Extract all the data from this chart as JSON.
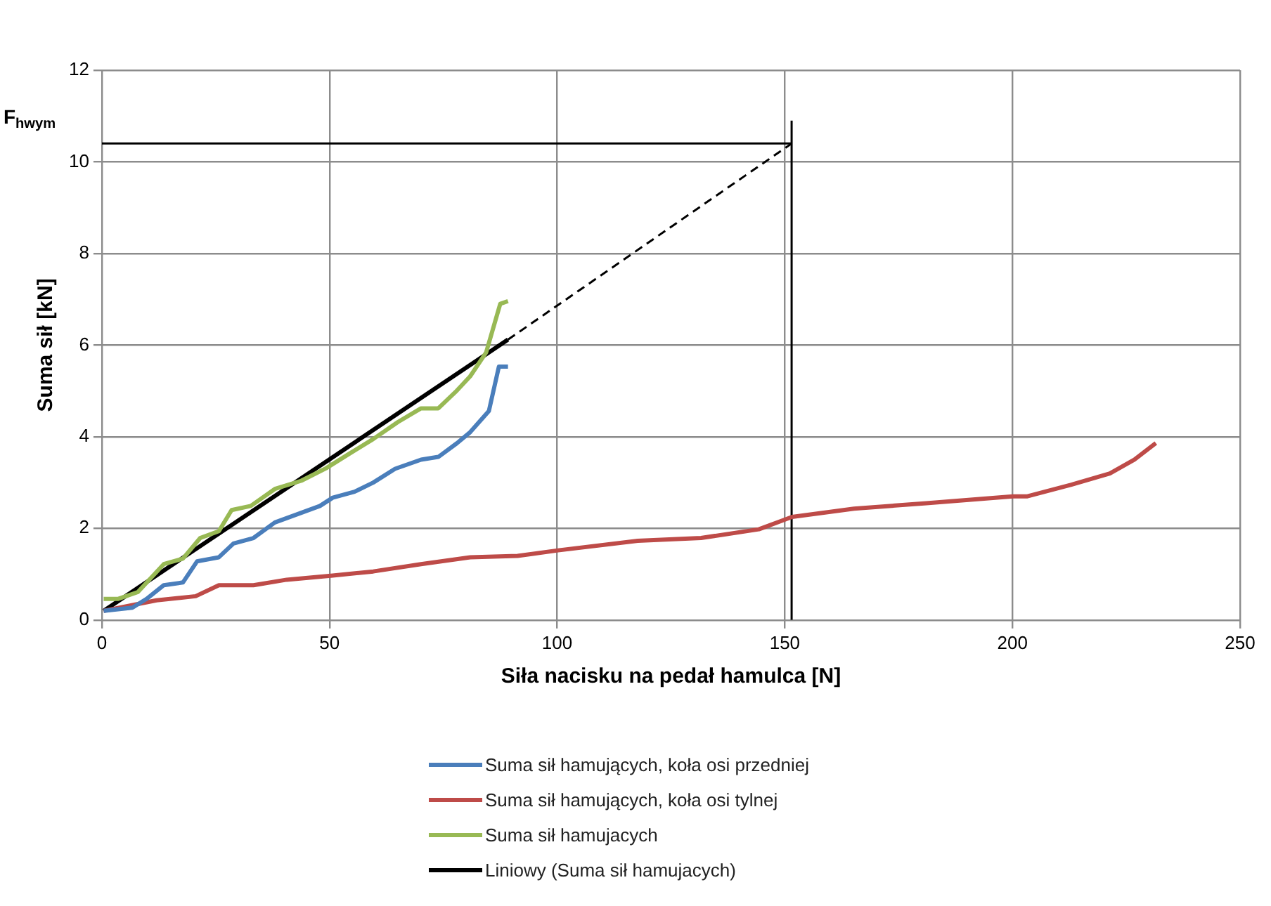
{
  "chart_data": {
    "type": "line",
    "xlabel": "Siła nacisku na pedał hamulca [N]",
    "ylabel": "Suma sił [kN]",
    "xlim": [
      0,
      250
    ],
    "xticks": [
      0,
      50,
      100,
      150,
      200,
      250
    ],
    "ylim": [
      0,
      12
    ],
    "yticks": [
      0,
      2,
      4,
      6,
      8,
      10,
      12
    ],
    "grid": true,
    "legend": "bottom",
    "marker": "none",
    "annotations": [
      {
        "text": "F$_{hwym}$",
        "x": 0,
        "y": 10.4
      }
    ],
    "series": [
      {
        "name": "Suma sił hamujących, koła osi przedniej",
        "color": "#4a7ebb",
        "x": [
          0.4,
          6.7,
          9.8,
          13.6,
          17.8,
          20.9,
          25.7,
          28.9,
          33.3,
          38,
          43.8,
          47.9,
          50.7,
          55.5,
          59.6,
          64.4,
          70.1,
          73.9,
          78,
          80.9,
          85,
          87.2,
          89.2
        ],
        "values": [
          0.2,
          0.27,
          0.46,
          0.76,
          0.82,
          1.28,
          1.37,
          1.67,
          1.79,
          2.13,
          2.34,
          2.49,
          2.67,
          2.8,
          3.0,
          3.3,
          3.5,
          3.56,
          3.86,
          4.1,
          4.56,
          5.53,
          5.53
        ]
      },
      {
        "name": "Suma sił hamujących, koła osi tylnej",
        "color": "#be4b48",
        "x": [
          0.4,
          12,
          20.6,
          25.7,
          33.3,
          40.6,
          50.7,
          59.6,
          70.1,
          80.9,
          91.3,
          100.2,
          117.7,
          131.6,
          144.3,
          151.6,
          165.2,
          181.1,
          200.1,
          203.3,
          212.8,
          221.4,
          226.8,
          231.5
        ],
        "values": [
          0.2,
          0.43,
          0.52,
          0.76,
          0.76,
          0.88,
          0.97,
          1.06,
          1.22,
          1.37,
          1.4,
          1.52,
          1.73,
          1.79,
          1.98,
          2.25,
          2.43,
          2.55,
          2.7,
          2.7,
          2.95,
          3.2,
          3.5,
          3.86
        ]
      },
      {
        "name": "Suma sił hamujacych",
        "color": "#98b954",
        "x": [
          0.4,
          3.5,
          7.9,
          13.6,
          17.8,
          21.6,
          25.7,
          28.5,
          32.7,
          38,
          43.8,
          49.2,
          54.2,
          59.6,
          65,
          70.1,
          73.9,
          77.7,
          80.9,
          84.4,
          87.5,
          89.2
        ],
        "values": [
          0.46,
          0.46,
          0.61,
          1.22,
          1.34,
          1.79,
          1.94,
          2.4,
          2.49,
          2.86,
          3.04,
          3.31,
          3.62,
          3.95,
          4.32,
          4.62,
          4.62,
          4.98,
          5.32,
          5.84,
          6.9,
          6.96
        ]
      },
      {
        "name": "Liniowy (Suma sił hamujacych)",
        "color": "#000000",
        "x": [
          0.4,
          89.2
        ],
        "values": [
          0.2,
          6.12
        ]
      },
      {
        "color": "#000000",
        "line_style": "dashed",
        "x": [
          89.2,
          151.5
        ],
        "values": [
          6.12,
          10.4
        ]
      },
      {
        "color": "#000000",
        "x": [
          0,
          151.5
        ],
        "values": [
          10.4,
          10.4
        ]
      },
      {
        "color": "#000000",
        "x": [
          151.5,
          151.5
        ],
        "values": [
          0,
          10.9
        ]
      }
    ]
  }
}
